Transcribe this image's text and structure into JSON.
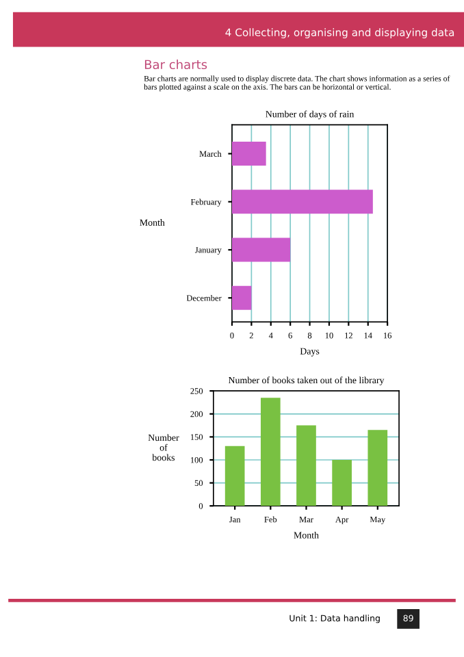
{
  "chart_data": [
    {
      "type": "bar",
      "orientation": "horizontal",
      "title": "Number of days of rain",
      "xlabel": "Days",
      "ylabel": "Month",
      "categories": [
        "March",
        "February",
        "January",
        "December"
      ],
      "values": [
        3.5,
        14.5,
        6,
        2
      ],
      "color": "#cc5ccc",
      "xlim": [
        0,
        16
      ],
      "xticks": [
        0,
        2,
        4,
        6,
        8,
        10,
        12,
        14,
        16
      ],
      "grid": "x",
      "annotations": [
        "4 Collecting, organising and displaying data",
        "Bar charts",
        "Bar charts are normally used to display discrete data. The chart shows information as a series of bars plotted against a scale on the axis. The bars can be horizontal or vertical."
      ]
    },
    {
      "type": "bar",
      "title": "Number of books taken out of the library",
      "xlabel": "Month",
      "ylabel": "Number\nof\nbooks",
      "categories": [
        "Jan",
        "Feb",
        "Mar",
        "Apr",
        "May"
      ],
      "values": [
        130,
        235,
        175,
        100,
        165
      ],
      "color": "#79c142",
      "ylim": [
        0,
        250
      ],
      "yticks": [
        0,
        50,
        100,
        150,
        200,
        250
      ],
      "grid": "y",
      "annotations": [
        "Unit 1: Data handling",
        "89"
      ]
    }
  ]
}
